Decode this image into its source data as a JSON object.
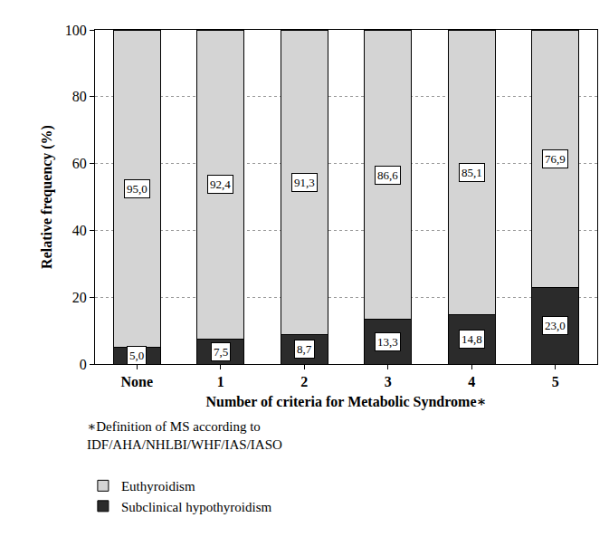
{
  "chart_data": {
    "type": "bar",
    "stacked": true,
    "data_labels": true,
    "xlabel": "Number of criteria for Metabolic Syndrome∗",
    "ylabel": "Relative frequency (%)",
    "footnote": [
      "∗Definition of MS according to",
      "IDF/AHA/NHLBI/WHF/IAS/IASO"
    ],
    "categories": [
      "None",
      "1",
      "2",
      "3",
      "4",
      "5"
    ],
    "series": [
      {
        "name": "Subclinical hypothyroidism",
        "color": "#2b2b2b",
        "values": [
          5.0,
          7.5,
          8.7,
          13.3,
          14.8,
          23.0
        ],
        "value_labels": [
          "5,0",
          "7,5",
          "8,7",
          "13,3",
          "14,8",
          "23,0"
        ]
      },
      {
        "name": "Euthyroidism",
        "color": "#d4d4d4",
        "values": [
          95.0,
          92.4,
          91.3,
          86.6,
          85.1,
          76.9
        ],
        "value_labels": [
          "95,0",
          "92,4",
          "91,3",
          "86,6",
          "85,1",
          "76,9"
        ]
      }
    ],
    "ylim": [
      0,
      100
    ],
    "yticks": [
      0,
      20,
      40,
      60,
      80,
      100
    ],
    "grid": true,
    "legend": "bottom left"
  }
}
